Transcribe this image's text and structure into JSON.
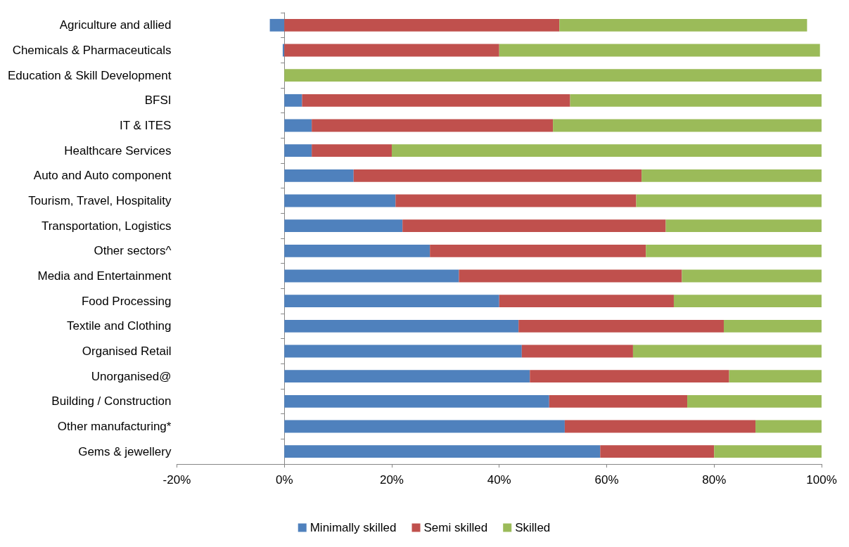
{
  "chart_data": {
    "type": "bar",
    "orientation": "horizontal",
    "stacked": true,
    "categories": [
      "Agriculture and allied",
      "Chemicals & Pharmaceuticals",
      "Education & Skill Development",
      "BFSI",
      "IT & ITES",
      "Healthcare Services",
      "Auto and Auto component",
      "Tourism, Travel, Hospitality",
      "Transportation, Logistics",
      "Other sectors^",
      "Media and Entertainment",
      "Food Processing",
      "Textile and Clothing",
      "Organised Retail",
      "Unorganised@",
      "Building / Construction",
      "Other manufacturing*",
      "Gems & jewellery"
    ],
    "series": [
      {
        "name": "Minimally skilled",
        "color": "#4f81bd",
        "values": [
          -2.7,
          -0.3,
          0,
          3.3,
          5.1,
          5.1,
          12.9,
          20.7,
          22.0,
          27.1,
          32.5,
          40.0,
          43.6,
          44.2,
          45.7,
          49.3,
          52.2,
          58.8
        ]
      },
      {
        "name": "Semi skilled",
        "color": "#c0504d",
        "values": [
          51.2,
          40.0,
          0,
          49.9,
          44.9,
          14.9,
          53.6,
          44.8,
          49.0,
          40.2,
          41.5,
          32.5,
          38.2,
          20.7,
          37.1,
          25.7,
          35.5,
          21.2
        ]
      },
      {
        "name": "Skilled",
        "color": "#9bbb59",
        "values": [
          46.1,
          59.7,
          100,
          46.8,
          50.0,
          80.0,
          33.5,
          34.5,
          29.0,
          32.7,
          26.0,
          27.5,
          18.2,
          35.1,
          17.2,
          25.0,
          12.3,
          20.0
        ]
      }
    ],
    "xlim": [
      -20,
      100
    ],
    "xticks": [
      {
        "value": -20,
        "label": "-20%"
      },
      {
        "value": 0,
        "label": "0%"
      },
      {
        "value": 20,
        "label": "20%"
      },
      {
        "value": 40,
        "label": "40%"
      },
      {
        "value": 60,
        "label": "60%"
      },
      {
        "value": 80,
        "label": "80%"
      },
      {
        "value": 100,
        "label": "100%"
      }
    ],
    "legend": "bottom"
  }
}
